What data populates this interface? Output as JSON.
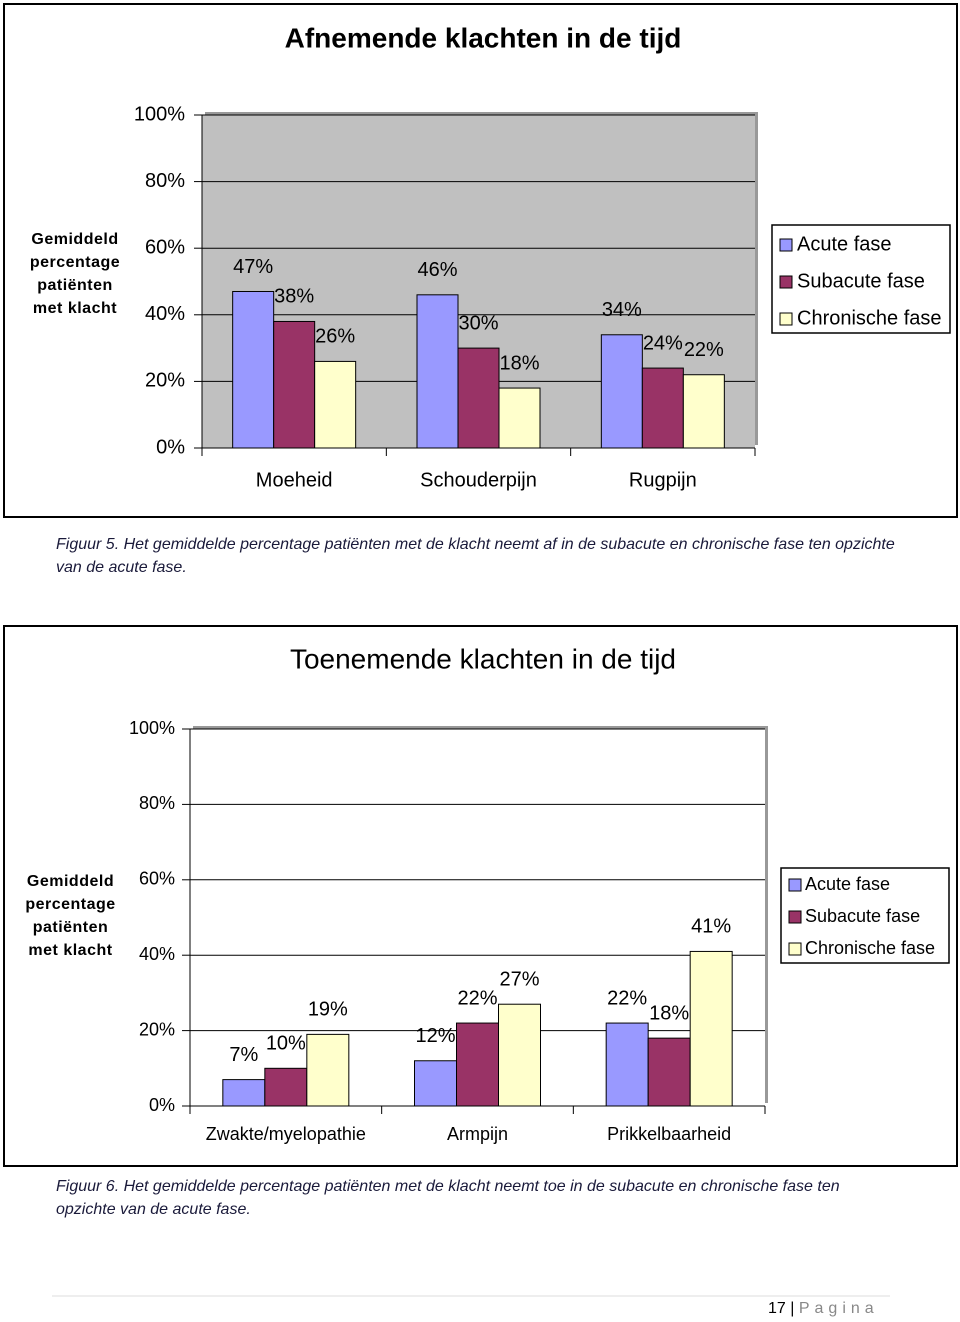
{
  "chart_data": [
    {
      "type": "bar",
      "title": "Afnemende klachten in de tijd",
      "y_label": "Gemiddeld percentage patiënten met klacht",
      "categories": [
        "Moeheid",
        "Schouderpijn",
        "Rugpijn"
      ],
      "series": [
        {
          "name": "Acute fase",
          "color": "#9999ff",
          "values": [
            47,
            46,
            34
          ],
          "value_labels": [
            "47%",
            "46%",
            "34%"
          ]
        },
        {
          "name": "Subacute fase",
          "color": "#993366",
          "values": [
            38,
            30,
            24
          ],
          "value_labels": [
            "38%",
            "30%",
            "24%"
          ]
        },
        {
          "name": "Chronische fase",
          "color": "#ffffcc",
          "values": [
            26,
            18,
            22
          ],
          "value_labels": [
            "26%",
            "18%",
            "22%"
          ]
        }
      ],
      "ylim": [
        0,
        100
      ],
      "yticks": [
        {
          "value": 0,
          "label": "0%"
        },
        {
          "value": 20,
          "label": "20%"
        },
        {
          "value": 40,
          "label": "40%"
        },
        {
          "value": 60,
          "label": "60%"
        },
        {
          "value": 80,
          "label": "80%"
        },
        {
          "value": 100,
          "label": "100%"
        }
      ],
      "grid": true,
      "plot_background": "#c0c0c0",
      "legend": "right",
      "caption": "Figuur 5. Het gemiddelde percentage patiënten met de klacht neemt af in de subacute en chronische fase ten opzichte van de acute fase."
    },
    {
      "type": "bar",
      "title": "Toenemende klachten in de tijd",
      "y_label": "Gemiddeld percentage patiënten met klacht",
      "categories": [
        "Zwakte/myelopathie",
        "Armpijn",
        "Prikkelbaarheid"
      ],
      "series": [
        {
          "name": "Acute fase",
          "color": "#9999ff",
          "values": [
            7,
            12,
            22
          ],
          "value_labels": [
            "7%",
            "12%",
            "22%"
          ]
        },
        {
          "name": "Subacute fase",
          "color": "#993366",
          "values": [
            10,
            22,
            18
          ],
          "value_labels": [
            "10%",
            "22%",
            "18%"
          ]
        },
        {
          "name": "Chronische fase",
          "color": "#ffffcc",
          "values": [
            19,
            27,
            41
          ],
          "value_labels": [
            "19%",
            "27%",
            "41%"
          ]
        }
      ],
      "ylim": [
        0,
        100
      ],
      "yticks": [
        {
          "value": 0,
          "label": "0%"
        },
        {
          "value": 20,
          "label": "20%"
        },
        {
          "value": 40,
          "label": "40%"
        },
        {
          "value": 60,
          "label": "60%"
        },
        {
          "value": 80,
          "label": "80%"
        },
        {
          "value": 100,
          "label": "100%"
        }
      ],
      "grid": true,
      "plot_background": "#ffffff",
      "legend": "right",
      "caption": "Figuur 6. Het gemiddelde percentage patiënten met de klacht neemt toe in de subacute en chronische fase ten opzichte van de acute fase."
    }
  ],
  "footer": {
    "number": "17",
    "label": "Pagina"
  }
}
